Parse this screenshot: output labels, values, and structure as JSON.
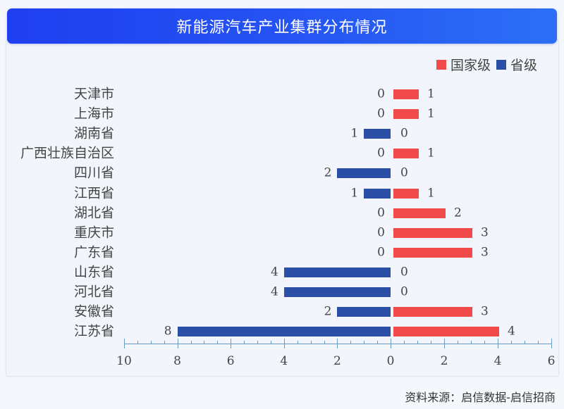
{
  "title": "新能源汽车产业集群分布情况",
  "legend": [
    {
      "label": "国家级",
      "color": "#f24b4b"
    },
    {
      "label": "省级",
      "color": "#2b4fa7"
    }
  ],
  "source": "资料来源：启信数据-启信招商",
  "chart_data": {
    "type": "bar",
    "orientation": "horizontal-butterfly",
    "title": "新能源汽车产业集群分布情况",
    "categories": [
      "天津市",
      "上海市",
      "湖南省",
      "广西壮族自治区",
      "四川省",
      "江西省",
      "湖北省",
      "重庆市",
      "广东省",
      "山东省",
      "河北省",
      "安徽省",
      "江苏省"
    ],
    "series": [
      {
        "name": "国家级",
        "color": "#f24b4b",
        "direction": "right",
        "values": [
          1,
          1,
          0,
          1,
          0,
          1,
          2,
          3,
          3,
          0,
          0,
          3,
          4
        ]
      },
      {
        "name": "省级",
        "color": "#2b4fa7",
        "direction": "left",
        "values": [
          0,
          0,
          1,
          0,
          2,
          1,
          0,
          0,
          0,
          4,
          4,
          2,
          8
        ]
      }
    ],
    "x_ticks_left": [
      10,
      8,
      6,
      4,
      2,
      0
    ],
    "x_ticks_right": [
      0,
      2,
      4,
      6
    ],
    "xlim_left": [
      0,
      10
    ],
    "xlim_right": [
      0,
      6
    ],
    "legend_position": "top-right",
    "grid": false,
    "data_labels": true
  }
}
